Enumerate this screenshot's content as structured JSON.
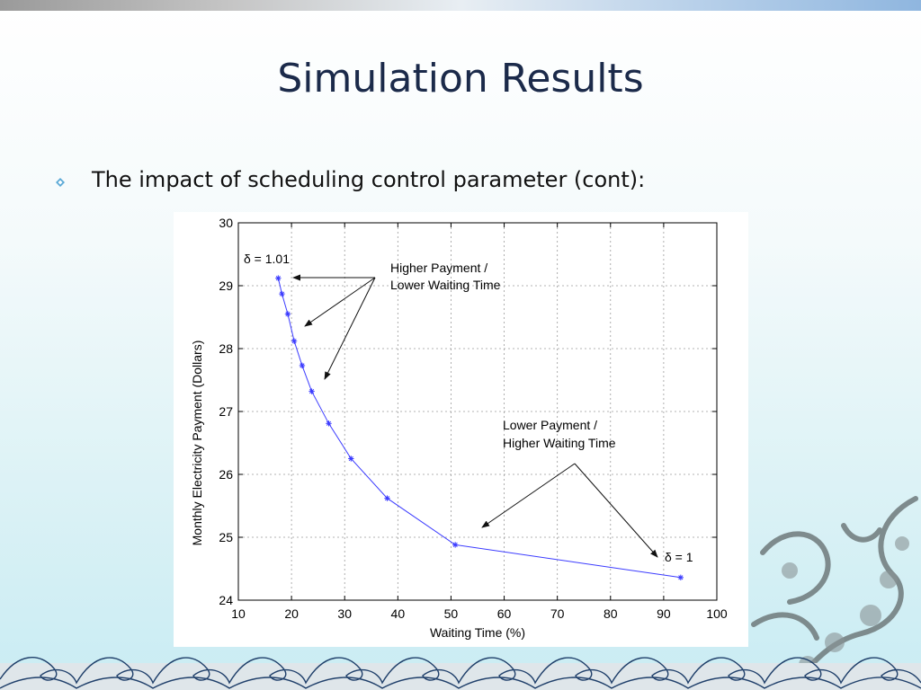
{
  "slide": {
    "title": "Simulation Results",
    "bullet": "The impact of scheduling control parameter (cont):"
  },
  "colors": {
    "series": "#3b3bff",
    "title": "#1b2a4a",
    "bullet": "#3a8fc0"
  },
  "chart_data": {
    "type": "line",
    "xlabel": "Waiting Time (%)",
    "ylabel": "Monthly Electricity Payment (Dollars)",
    "xlim": [
      10,
      100
    ],
    "ylim": [
      24,
      30
    ],
    "xticks": [
      "10",
      "20",
      "30",
      "40",
      "50",
      "60",
      "70",
      "80",
      "90",
      "100"
    ],
    "yticks": [
      "24",
      "25",
      "26",
      "27",
      "28",
      "29",
      "30"
    ],
    "grid": true,
    "marker": "star",
    "series": [
      {
        "x": [
          17.5,
          18.2,
          19.3,
          20.5,
          22.0,
          23.8,
          27.0,
          31.2,
          38.0,
          50.8,
          93.2
        ],
        "y": [
          29.12,
          28.87,
          28.55,
          28.12,
          27.73,
          27.32,
          26.81,
          26.25,
          25.62,
          24.88,
          24.36
        ]
      }
    ],
    "annotations": {
      "delta_top": "δ = 1.01",
      "delta_bottom": "δ = 1",
      "higher_payment": [
        "Higher Payment /",
        "Lower Waiting Time"
      ],
      "lower_payment": [
        "Lower Payment /",
        "Higher Waiting Time"
      ]
    }
  }
}
